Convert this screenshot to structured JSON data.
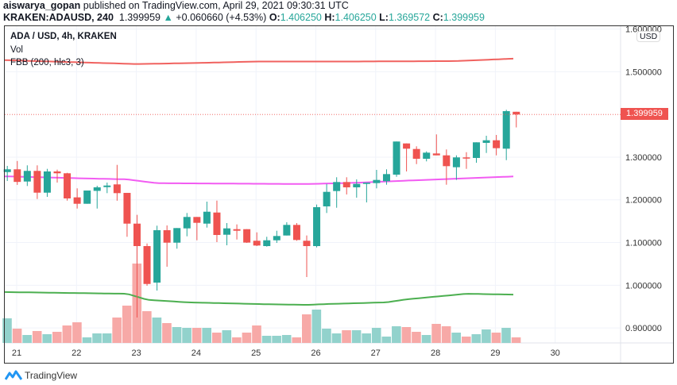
{
  "header": {
    "author": "aiswarya_gopan",
    "published_text": "published on TradingView.com, April 29, 2021 09:30:31 UTC",
    "symbol": "KRAKEN:ADAUSD, 240",
    "last": "1.399959",
    "change": "+0.060660 (+4.53%)",
    "o_label": "O:",
    "o": "1.406250",
    "h_label": "H:",
    "h": "1.406250",
    "l_label": "L:",
    "l": "1.369572",
    "c_label": "C:",
    "c": "1.399959"
  },
  "legend": {
    "title": "ADA / USD, 4h, KRAKEN",
    "vol": "Vol",
    "fbb": "FBB (200, hlc3, 3)"
  },
  "price_axis": {
    "currency": "USD",
    "last_price_label": "1.399959",
    "ticks": [
      "1.600000",
      "1.500000",
      "1.300000",
      "1.200000",
      "1.100000",
      "1.000000",
      "0.900000"
    ]
  },
  "time_axis": {
    "ticks": [
      "21",
      "22",
      "23",
      "24",
      "25",
      "26",
      "27",
      "28",
      "29",
      "30"
    ]
  },
  "footer": {
    "brand": "TradingView"
  },
  "colors": {
    "up": "#26a69a",
    "down": "#ef5350",
    "vol_up": "#92d2cc",
    "vol_down": "#f7a9a7",
    "upper_band": "#f0625f",
    "basis": "#f25cf2",
    "lower_band": "#4caf50",
    "brand": "#2196f3"
  },
  "chart_data": {
    "type": "candlestick",
    "ylim": [
      0.87,
      1.61
    ],
    "tick_values": [
      1.6,
      1.5,
      1.3,
      1.2,
      1.1,
      1.0,
      0.9
    ],
    "last_price": 1.399959,
    "candles": [
      [
        1.265,
        1.2795,
        1.2442,
        1.2715
      ],
      [
        1.2715,
        1.291,
        1.235,
        1.242
      ],
      [
        1.2429,
        1.2808,
        1.2324,
        1.2678
      ],
      [
        1.2678,
        1.2808,
        1.202,
        1.2168
      ],
      [
        1.2168,
        1.2726,
        1.207,
        1.2665
      ],
      [
        1.2665,
        1.2707,
        1.2404,
        1.2622
      ],
      [
        1.2622,
        1.2633,
        1.1982,
        1.2033
      ],
      [
        1.2058,
        1.2269,
        1.1796,
        1.1908
      ],
      [
        1.1908,
        1.2218,
        1.1908,
        1.2218
      ],
      [
        1.221,
        1.233,
        1.1796,
        1.2293
      ],
      [
        1.2298,
        1.2404,
        1.2157,
        1.2335
      ],
      [
        1.2362,
        1.2819,
        1.198,
        1.2157
      ],
      [
        1.2163,
        1.2163,
        1.1135,
        1.1443
      ],
      [
        1.1443,
        1.1648,
        0.9244,
        1.0917
      ],
      [
        1.0917,
        1.0978,
        0.9988,
        1.003
      ],
      [
        1.0062,
        1.1395,
        0.9876,
        1.1289
      ],
      [
        1.1289,
        1.1401,
        1.0434,
        1.0997
      ],
      [
        1.0997,
        1.1339,
        1.0856,
        1.1339
      ],
      [
        1.1332,
        1.1692,
        1.1146,
        1.1599
      ],
      [
        1.1599,
        1.1599,
        1.1053,
        1.1462
      ],
      [
        1.1443,
        1.1958,
        1.135,
        1.1722
      ],
      [
        1.1703,
        1.1982,
        1.101,
        1.1177
      ],
      [
        1.1183,
        1.1456,
        1.0936,
        1.1332
      ],
      [
        1.1313,
        1.1425,
        1.1071,
        1.1276
      ],
      [
        1.1313,
        1.1313,
        1.0991,
        1.0999
      ],
      [
        1.1042,
        1.1239,
        1.0917,
        1.093
      ],
      [
        1.0917,
        1.1135,
        1.0904,
        1.1053
      ],
      [
        1.1053,
        1.1276,
        1.0991,
        1.1153
      ],
      [
        1.1165,
        1.1475,
        1.1165,
        1.1413
      ],
      [
        1.1413,
        1.1456,
        1.1042,
        1.106
      ],
      [
        1.1042,
        1.1165,
        1.0192,
        1.0917
      ],
      [
        1.0917,
        1.189,
        1.0886,
        1.1828
      ],
      [
        1.1847,
        1.2373,
        1.1692,
        1.2187
      ],
      [
        1.2206,
        1.2529,
        1.1815,
        1.2417
      ],
      [
        1.2417,
        1.2529,
        1.2126,
        1.2293
      ],
      [
        1.2293,
        1.2479,
        1.2051,
        1.2373
      ],
      [
        1.2373,
        1.2404,
        1.194,
        1.2404
      ],
      [
        1.2392,
        1.2702,
        1.2269,
        1.2466
      ],
      [
        1.2436,
        1.2715,
        1.2354,
        1.2603
      ],
      [
        1.259,
        1.3366,
        1.254,
        1.3366
      ],
      [
        1.3321,
        1.3321,
        1.2665,
        1.3198
      ],
      [
        1.3191,
        1.3254,
        1.2837,
        1.2962
      ],
      [
        1.2962,
        1.3135,
        1.2901,
        1.3105
      ],
      [
        1.3086,
        1.3533,
        1.3042,
        1.3042
      ],
      [
        1.3042,
        1.318,
        1.2354,
        1.2789
      ],
      [
        1.2764,
        1.3042,
        1.2466,
        1.2994
      ],
      [
        1.2994,
        1.3116,
        1.2726,
        1.2975
      ],
      [
        1.2981,
        1.3347,
        1.2869,
        1.3347
      ],
      [
        1.3334,
        1.3501,
        1.3098,
        1.3395
      ],
      [
        1.3395,
        1.352,
        1.3042,
        1.321
      ],
      [
        1.3198,
        1.4109,
        1.293,
        1.4077
      ],
      [
        1.40625,
        1.40625,
        1.369572,
        1.399959
      ]
    ],
    "volume_relative": [
      31,
      18,
      10,
      15,
      11,
      14,
      22,
      26,
      7,
      12,
      12,
      32,
      47,
      100,
      40,
      32,
      25,
      20,
      19,
      19,
      19,
      13,
      16,
      7,
      13,
      22,
      9,
      9,
      10,
      7,
      36,
      42,
      18,
      12,
      16,
      16,
      12,
      19,
      8,
      21,
      20,
      14,
      10,
      24,
      21,
      13,
      8,
      11,
      17,
      13,
      19,
      7
    ],
    "bands": {
      "upper": [
        [
          0,
          1.527
        ],
        [
          13,
          1.518
        ],
        [
          20,
          1.521
        ],
        [
          25,
          1.524
        ],
        [
          35,
          1.524
        ],
        [
          45,
          1.525
        ],
        [
          51,
          1.531
        ]
      ],
      "basis": [
        [
          0,
          1.255
        ],
        [
          8,
          1.25
        ],
        [
          12,
          1.248
        ],
        [
          15,
          1.239
        ],
        [
          30,
          1.237
        ],
        [
          35,
          1.24
        ],
        [
          40,
          1.245
        ],
        [
          51,
          1.255
        ]
      ],
      "lower": [
        [
          0,
          0.984
        ],
        [
          12,
          0.98
        ],
        [
          14,
          0.966
        ],
        [
          18,
          0.96
        ],
        [
          25,
          0.956
        ],
        [
          30,
          0.954
        ],
        [
          32,
          0.956
        ],
        [
          38,
          0.96
        ],
        [
          40,
          0.967
        ],
        [
          46,
          0.98
        ],
        [
          51,
          0.978
        ]
      ]
    }
  }
}
